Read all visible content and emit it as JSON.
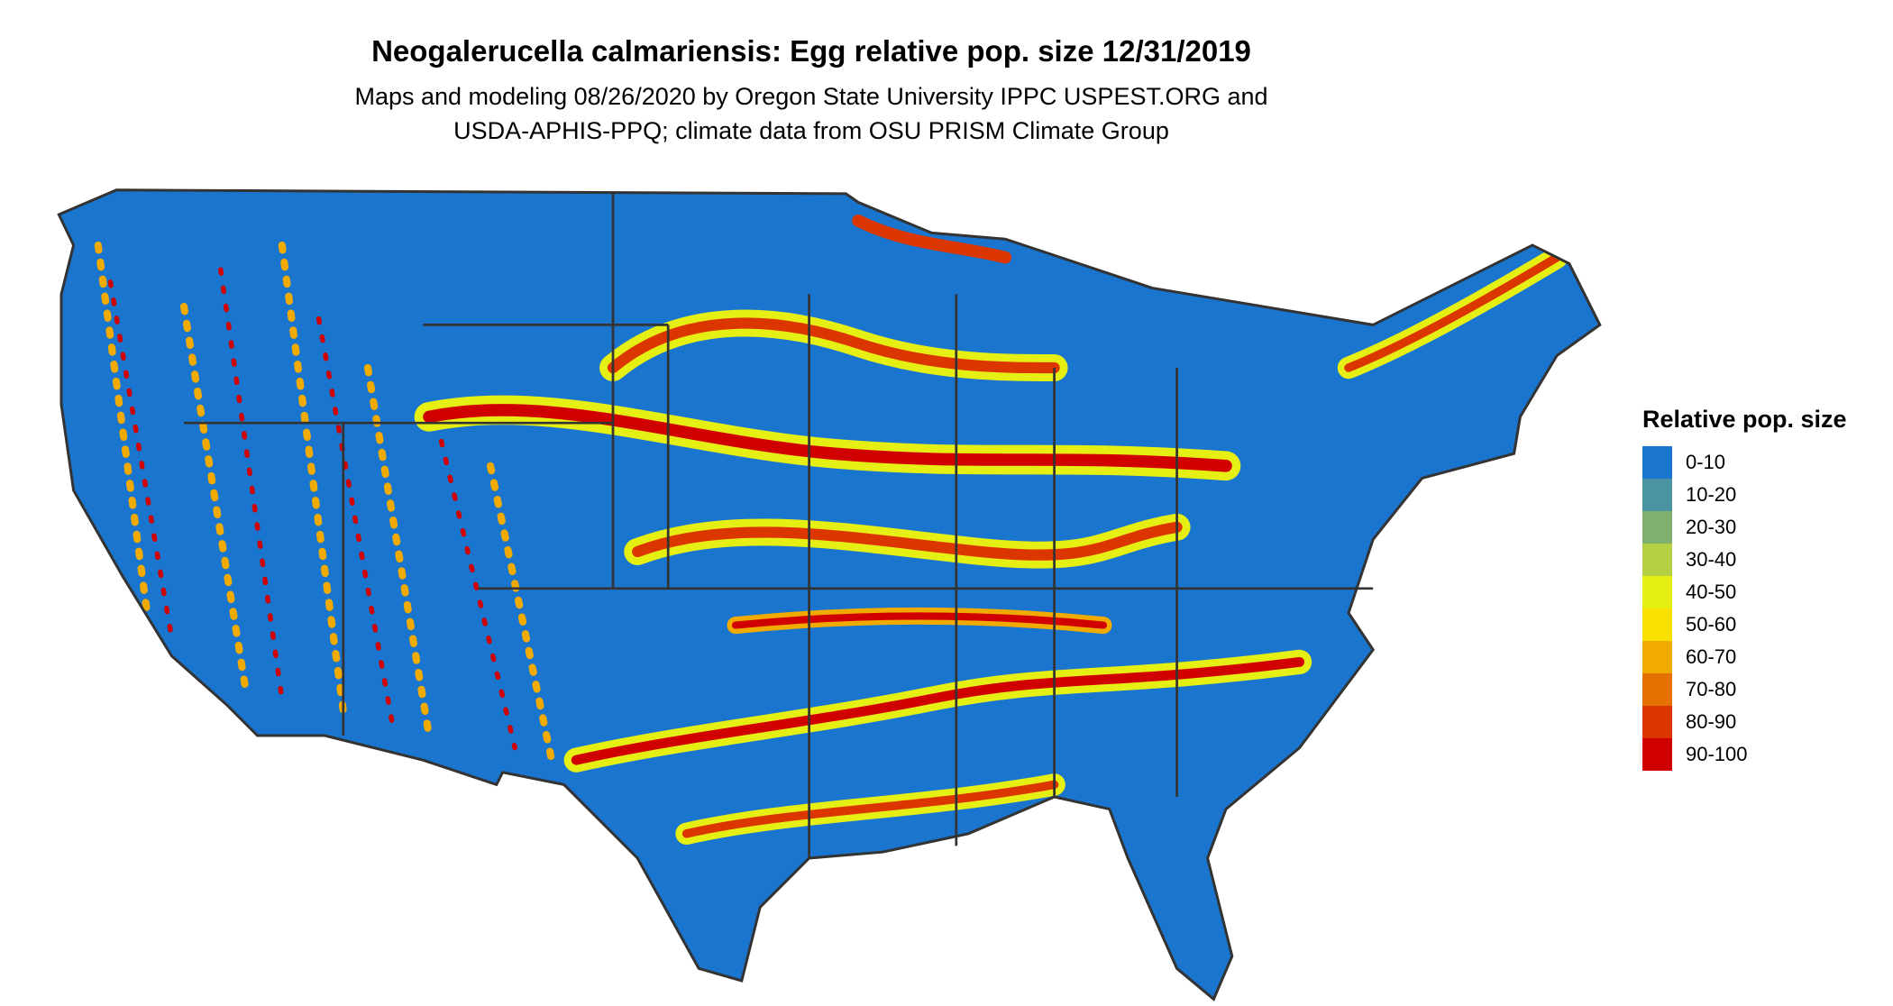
{
  "title": "Neogalerucella calmariensis: Egg relative pop. size 12/31/2019",
  "subtitle_line1": "Maps and modeling 08/26/2020 by Oregon State University IPPC USPEST.ORG and",
  "subtitle_line2": "USDA-APHIS-PPQ; climate data from OSU PRISM Climate Group",
  "legend": {
    "title": "Relative pop. size",
    "items": [
      {
        "label": "0-10",
        "color": "#1a75cf"
      },
      {
        "label": "10-20",
        "color": "#4a93a0"
      },
      {
        "label": "20-30",
        "color": "#7fb06f"
      },
      {
        "label": "30-40",
        "color": "#b4d143"
      },
      {
        "label": "40-50",
        "color": "#e6ef14"
      },
      {
        "label": "50-60",
        "color": "#f9e000"
      },
      {
        "label": "60-70",
        "color": "#f0aa00"
      },
      {
        "label": "70-80",
        "color": "#e57200"
      },
      {
        "label": "80-90",
        "color": "#db3600"
      },
      {
        "label": "90-100",
        "color": "#d10000"
      }
    ]
  }
}
